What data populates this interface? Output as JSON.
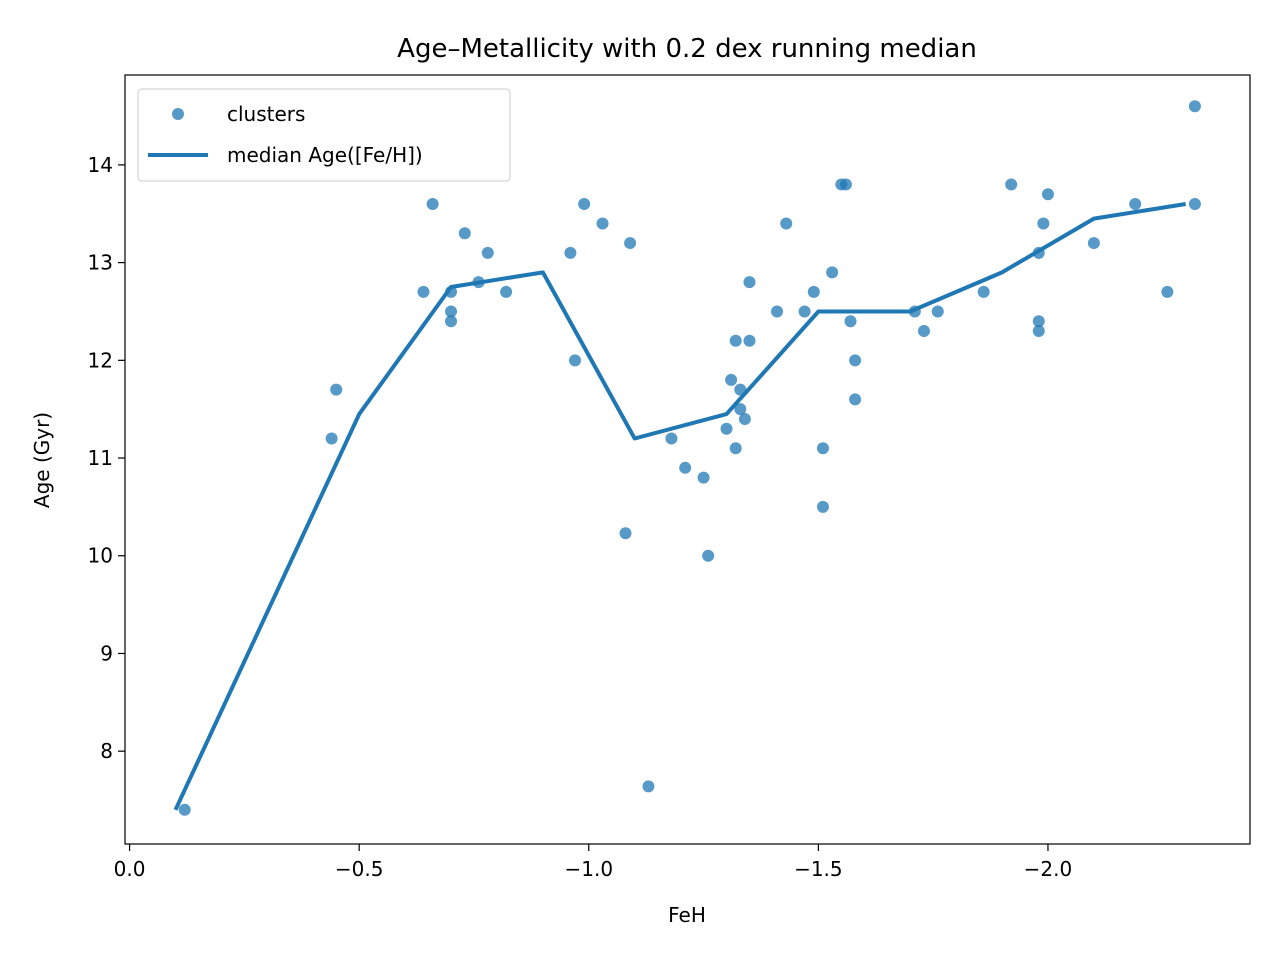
{
  "chart_data": {
    "type": "scatter",
    "title": "Age–Metallicity with 0.2 dex running median",
    "xlabel": "FeH",
    "ylabel": "Age (Gyr)",
    "x_inverted": true,
    "xlim": [
      0.01,
      -2.44
    ],
    "ylim": [
      7.05,
      14.92
    ],
    "x_ticks": [
      {
        "value": 0.0,
        "label": "0.0"
      },
      {
        "value": -0.5,
        "label": "−0.5"
      },
      {
        "value": -1.0,
        "label": "−1.0"
      },
      {
        "value": -1.5,
        "label": "−1.5"
      },
      {
        "value": -2.0,
        "label": "−2.0"
      }
    ],
    "y_ticks": [
      {
        "value": 8,
        "label": "8"
      },
      {
        "value": 9,
        "label": "9"
      },
      {
        "value": 10,
        "label": "10"
      },
      {
        "value": 11,
        "label": "11"
      },
      {
        "value": 12,
        "label": "12"
      },
      {
        "value": 13,
        "label": "13"
      },
      {
        "value": 14,
        "label": "14"
      }
    ],
    "grid": false,
    "legend_position": "top-left",
    "legend": [
      {
        "label": "clusters",
        "kind": "marker"
      },
      {
        "label": "median Age([Fe/H])",
        "kind": "line"
      }
    ],
    "series": [
      {
        "name": "clusters",
        "kind": "scatter",
        "color": "#1f77b4",
        "opacity": 0.75,
        "points": [
          [
            -0.12,
            7.4
          ],
          [
            -0.44,
            11.2
          ],
          [
            -0.45,
            11.7
          ],
          [
            -0.64,
            12.7
          ],
          [
            -0.66,
            13.6
          ],
          [
            -0.7,
            12.7
          ],
          [
            -0.7,
            12.5
          ],
          [
            -0.7,
            12.4
          ],
          [
            -0.73,
            13.3
          ],
          [
            -0.76,
            12.8
          ],
          [
            -0.78,
            13.1
          ],
          [
            -0.82,
            12.7
          ],
          [
            -0.96,
            13.1
          ],
          [
            -0.97,
            12.0
          ],
          [
            -0.99,
            13.6
          ],
          [
            -1.03,
            13.4
          ],
          [
            -1.08,
            10.23
          ],
          [
            -1.09,
            13.2
          ],
          [
            -1.13,
            7.64
          ],
          [
            -1.18,
            11.2
          ],
          [
            -1.21,
            10.9
          ],
          [
            -1.25,
            10.8
          ],
          [
            -1.26,
            10.0
          ],
          [
            -1.3,
            11.3
          ],
          [
            -1.31,
            11.8
          ],
          [
            -1.32,
            12.2
          ],
          [
            -1.32,
            11.1
          ],
          [
            -1.33,
            11.7
          ],
          [
            -1.33,
            11.5
          ],
          [
            -1.34,
            11.4
          ],
          [
            -1.35,
            12.2
          ],
          [
            -1.35,
            12.8
          ],
          [
            -1.41,
            12.5
          ],
          [
            -1.43,
            13.4
          ],
          [
            -1.47,
            12.5
          ],
          [
            -1.49,
            12.7
          ],
          [
            -1.51,
            11.1
          ],
          [
            -1.51,
            10.5
          ],
          [
            -1.53,
            12.9
          ],
          [
            -1.55,
            13.8
          ],
          [
            -1.56,
            13.8
          ],
          [
            -1.57,
            12.4
          ],
          [
            -1.58,
            12.0
          ],
          [
            -1.58,
            11.6
          ],
          [
            -1.71,
            12.5
          ],
          [
            -1.73,
            12.3
          ],
          [
            -1.76,
            12.5
          ],
          [
            -1.86,
            12.7
          ],
          [
            -1.92,
            13.8
          ],
          [
            -1.98,
            13.1
          ],
          [
            -1.98,
            12.4
          ],
          [
            -1.98,
            12.3
          ],
          [
            -1.99,
            13.4
          ],
          [
            -2.0,
            13.7
          ],
          [
            -2.1,
            13.2
          ],
          [
            -2.19,
            13.6
          ],
          [
            -2.26,
            12.7
          ],
          [
            -2.32,
            14.6
          ],
          [
            -2.32,
            13.6
          ]
        ]
      },
      {
        "name": "median Age([Fe/H])",
        "kind": "line",
        "color": "#1f77b4",
        "points": [
          [
            -0.1,
            7.4
          ],
          [
            -0.5,
            11.45
          ],
          [
            -0.7,
            12.75
          ],
          [
            -0.9,
            12.9
          ],
          [
            -1.1,
            11.2
          ],
          [
            -1.3,
            11.45
          ],
          [
            -1.5,
            12.5
          ],
          [
            -1.7,
            12.5
          ],
          [
            -1.9,
            12.9
          ],
          [
            -2.1,
            13.45
          ],
          [
            -2.3,
            13.6
          ]
        ]
      }
    ]
  }
}
